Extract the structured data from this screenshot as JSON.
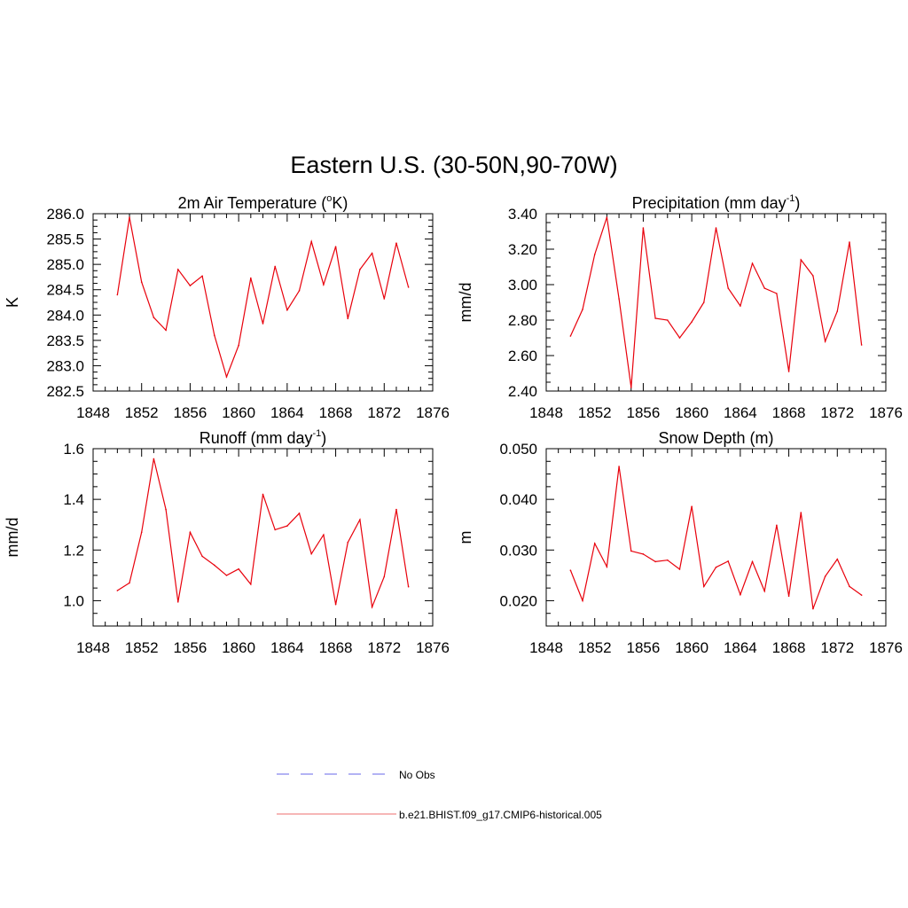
{
  "figure": {
    "title": "Eastern U.S. (30-50N,90-70W)"
  },
  "legend": {
    "entries": [
      {
        "label": "No Obs",
        "color": "#9a9af0",
        "style": "dashed"
      },
      {
        "label": "b.e21.BHIST.f09_g17.CMIP6-historical.005",
        "color": "#e8000b",
        "style": "solid"
      }
    ]
  },
  "chart_data": [
    {
      "type": "line",
      "title": "2m Air Temperature (°K)",
      "title_parts": {
        "pre": "2m Air Temperature (",
        "sup": "o",
        "post": "K)"
      },
      "xlabel": "",
      "ylabel": "K",
      "xlim": [
        1848,
        1876
      ],
      "ylim": [
        282.5,
        286.0
      ],
      "xticks": [
        1848,
        1852,
        1856,
        1860,
        1864,
        1868,
        1872,
        1876
      ],
      "yticks": [
        282.5,
        283.0,
        283.5,
        284.0,
        284.5,
        285.0,
        285.5,
        286.0
      ],
      "ytick_labels": [
        "282.5",
        "283.0",
        "283.5",
        "284.0",
        "284.5",
        "285.0",
        "285.5",
        "286.0"
      ],
      "x": [
        1850,
        1851,
        1852,
        1853,
        1854,
        1855,
        1856,
        1857,
        1858,
        1859,
        1860,
        1861,
        1862,
        1863,
        1864,
        1865,
        1866,
        1867,
        1868,
        1869,
        1870,
        1871,
        1872,
        1873,
        1874
      ],
      "series": [
        {
          "values": [
            284.4,
            285.93,
            284.65,
            283.95,
            283.7,
            284.9,
            284.58,
            284.77,
            283.6,
            282.78,
            283.4,
            284.73,
            283.83,
            284.96,
            284.1,
            284.48,
            285.45,
            284.6,
            285.35,
            283.93,
            284.9,
            285.22,
            284.32,
            285.42,
            284.55
          ],
          "color": "#e8000b"
        }
      ]
    },
    {
      "type": "line",
      "title": "Precipitation (mm day-1)",
      "title_parts": {
        "pre": "Precipitation (mm day",
        "sup": "-1",
        "post": ")"
      },
      "xlabel": "",
      "ylabel": "mm/d",
      "xlim": [
        1848,
        1876
      ],
      "ylim": [
        2.4,
        3.4
      ],
      "xticks": [
        1848,
        1852,
        1856,
        1860,
        1864,
        1868,
        1872,
        1876
      ],
      "yticks": [
        2.4,
        2.6,
        2.8,
        3.0,
        3.2,
        3.4
      ],
      "ytick_labels": [
        "2.40",
        "2.60",
        "2.80",
        "3.00",
        "3.20",
        "3.40"
      ],
      "x": [
        1850,
        1851,
        1852,
        1853,
        1854,
        1855,
        1856,
        1857,
        1858,
        1859,
        1860,
        1861,
        1862,
        1863,
        1864,
        1865,
        1866,
        1867,
        1868,
        1869,
        1870,
        1871,
        1872,
        1873,
        1874
      ],
      "series": [
        {
          "values": [
            2.71,
            2.86,
            3.17,
            3.38,
            2.92,
            2.42,
            3.32,
            2.81,
            2.8,
            2.7,
            2.79,
            2.9,
            3.32,
            2.98,
            2.88,
            3.12,
            2.98,
            2.95,
            2.51,
            3.14,
            3.05,
            2.68,
            2.85,
            3.24,
            2.66
          ],
          "color": "#e8000b"
        }
      ]
    },
    {
      "type": "line",
      "title": "Runoff (mm day-1)",
      "title_parts": {
        "pre": "Runoff (mm day",
        "sup": "-1",
        "post": ")"
      },
      "xlabel": "",
      "ylabel": "mm/d",
      "xlim": [
        1848,
        1876
      ],
      "ylim": [
        0.9,
        1.6
      ],
      "xticks": [
        1848,
        1852,
        1856,
        1860,
        1864,
        1868,
        1872,
        1876
      ],
      "yticks": [
        1.0,
        1.2,
        1.4,
        1.6
      ],
      "ytick_labels": [
        "1.0",
        "1.2",
        "1.4",
        "1.6"
      ],
      "x": [
        1850,
        1851,
        1852,
        1853,
        1854,
        1855,
        1856,
        1857,
        1858,
        1859,
        1860,
        1861,
        1862,
        1863,
        1864,
        1865,
        1866,
        1867,
        1868,
        1869,
        1870,
        1871,
        1872,
        1873,
        1874
      ],
      "series": [
        {
          "values": [
            1.04,
            1.07,
            1.27,
            1.56,
            1.36,
            0.995,
            1.27,
            1.175,
            1.14,
            1.1,
            1.125,
            1.065,
            1.42,
            1.28,
            1.295,
            1.345,
            1.185,
            1.26,
            0.985,
            1.23,
            1.32,
            0.975,
            1.095,
            1.36,
            1.055
          ],
          "color": "#e8000b"
        }
      ]
    },
    {
      "type": "line",
      "title": "Snow Depth (m)",
      "title_parts": {
        "pre": "Snow Depth (m)",
        "sup": "",
        "post": ""
      },
      "xlabel": "",
      "ylabel": "m",
      "xlim": [
        1848,
        1876
      ],
      "ylim": [
        0.015,
        0.05
      ],
      "xticks": [
        1848,
        1852,
        1856,
        1860,
        1864,
        1868,
        1872,
        1876
      ],
      "yticks": [
        0.02,
        0.03,
        0.04,
        0.05
      ],
      "ytick_labels": [
        "0.020",
        "0.030",
        "0.040",
        "0.050"
      ],
      "x": [
        1850,
        1851,
        1852,
        1853,
        1854,
        1855,
        1856,
        1857,
        1858,
        1859,
        1860,
        1861,
        1862,
        1863,
        1864,
        1865,
        1866,
        1867,
        1868,
        1869,
        1870,
        1871,
        1872,
        1873,
        1874
      ],
      "series": [
        {
          "values": [
            0.026,
            0.02,
            0.0313,
            0.0267,
            0.0465,
            0.0298,
            0.0292,
            0.0277,
            0.028,
            0.0262,
            0.0386,
            0.0228,
            0.0266,
            0.0278,
            0.0212,
            0.0277,
            0.0219,
            0.0349,
            0.0209,
            0.0374,
            0.0184,
            0.0248,
            0.0282,
            0.0228,
            0.0211
          ],
          "color": "#e8000b"
        }
      ]
    }
  ]
}
